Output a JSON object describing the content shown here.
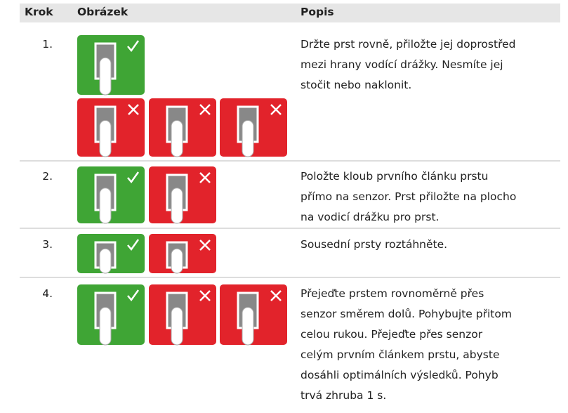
{
  "table": {
    "header": [
      "Krok",
      "Obrázek",
      "Popis"
    ],
    "rows": [
      {
        "step": "1.",
        "lines": [
          "Držte prst rovně, přiložte jej doprostřed",
          "mezi hrany vodící drážky. Nesmíte jej",
          "stočit nebo naklonit."
        ]
      },
      {
        "step": "2.",
        "lines": [
          "Položte kloub prvního článku prstu",
          "přímo na senzor. Prst přiložte na plocho",
          "na vodicí drážku pro prst."
        ]
      },
      {
        "step": "3.",
        "lines": [
          "Sousední prsty roztáhněte."
        ]
      },
      {
        "step": "4.",
        "lines": [
          "Přejeďte prstem rovnoměrně přes",
          "senzor směrem dolů. Pohybujte přitom",
          "celou rukou. Přejeďte přes senzor",
          "celým prvním článkem prstu, abyste",
          "dosáhli optimálních výsledků. Pohyb",
          "trvá zhruba 1 s."
        ]
      }
    ]
  }
}
